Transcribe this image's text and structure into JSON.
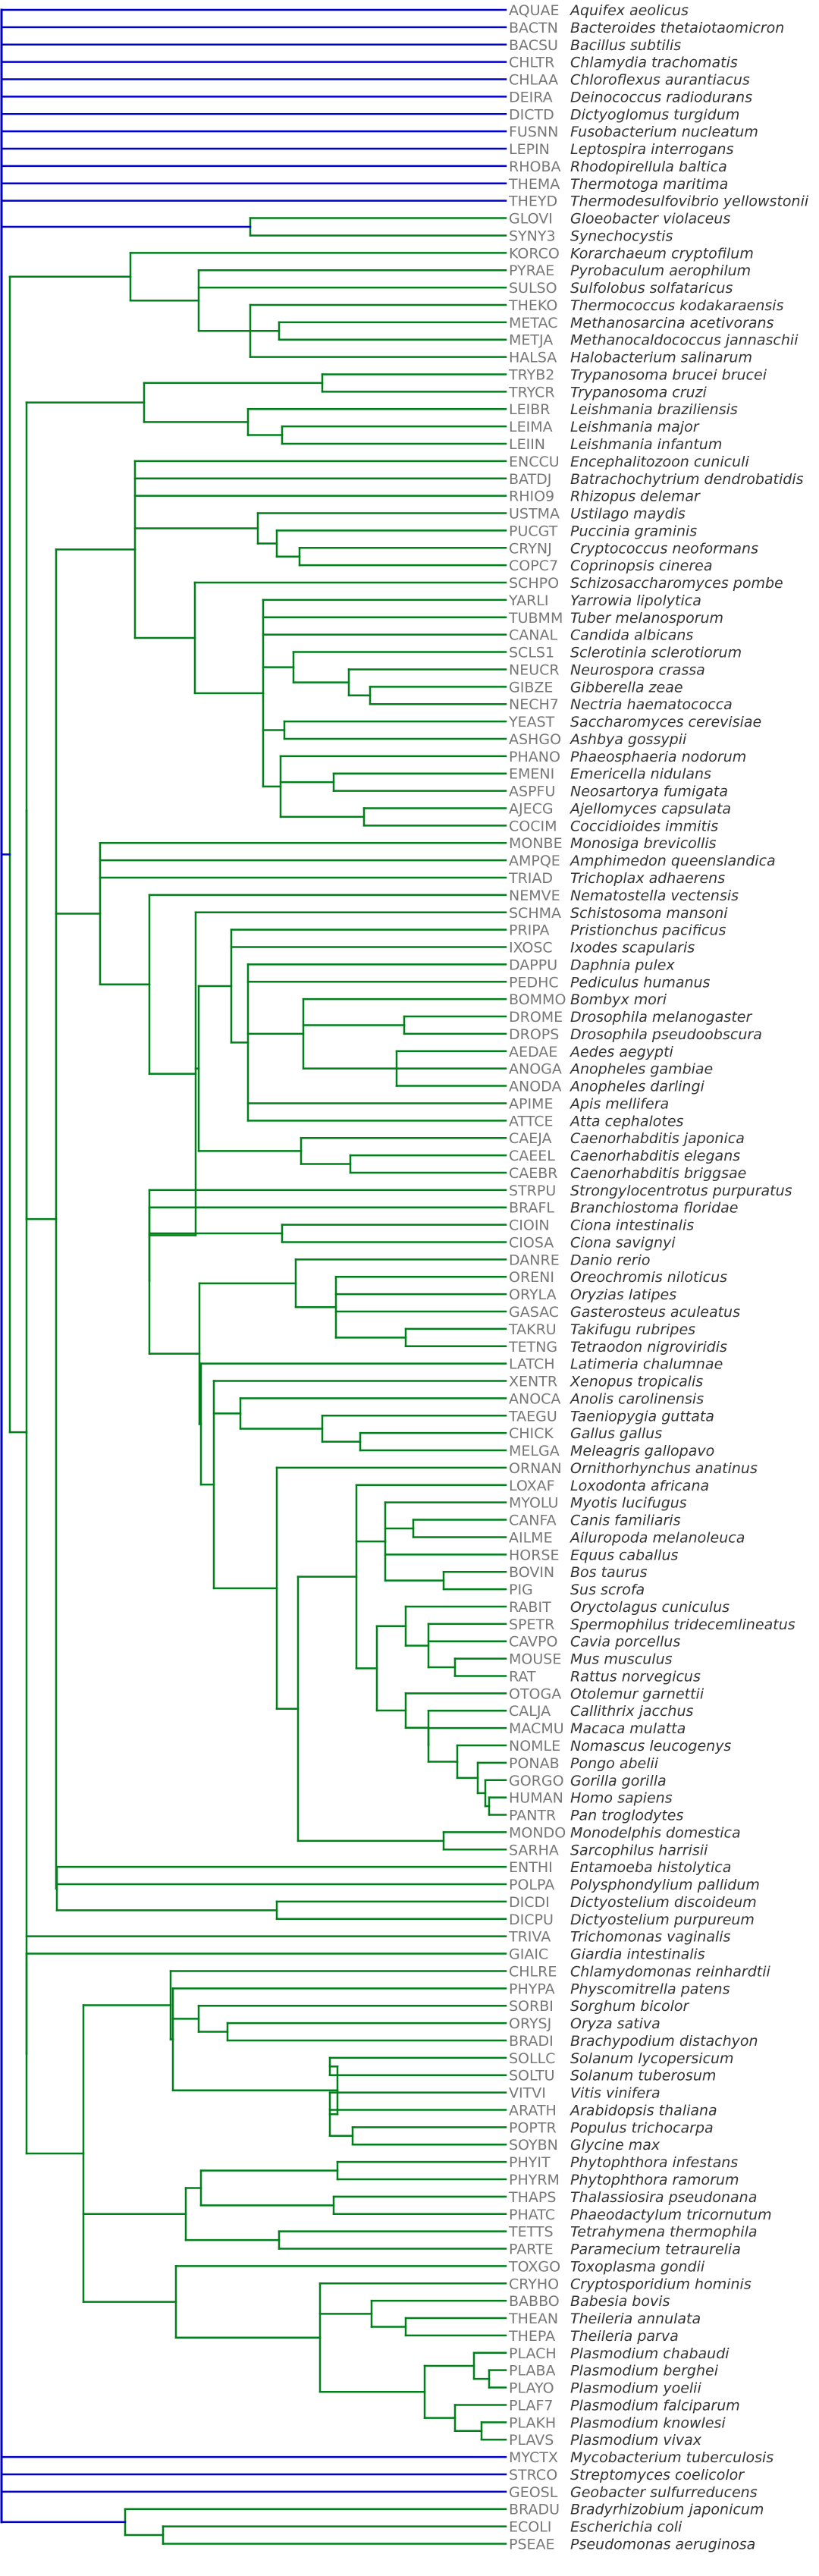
{
  "colors": {
    "root_branch": "#0000cc",
    "branch": "#00801b",
    "code_text": "#777777",
    "species_text": "#333333"
  },
  "leaves": [
    {
      "code": "AQUAE",
      "name": "Aquifex aeolicus"
    },
    {
      "code": "BACTN",
      "name": "Bacteroides thetaiotaomicron"
    },
    {
      "code": "BACSU",
      "name": "Bacillus subtilis"
    },
    {
      "code": "CHLTR",
      "name": "Chlamydia trachomatis"
    },
    {
      "code": "CHLAA",
      "name": "Chloroflexus aurantiacus"
    },
    {
      "code": "DEIRA",
      "name": "Deinococcus radiodurans"
    },
    {
      "code": "DICTD",
      "name": "Dictyoglomus turgidum"
    },
    {
      "code": "FUSNN",
      "name": "Fusobacterium nucleatum"
    },
    {
      "code": "LEPIN",
      "name": "Leptospira interrogans"
    },
    {
      "code": "RHOBA",
      "name": "Rhodopirellula baltica"
    },
    {
      "code": "THEMA",
      "name": "Thermotoga maritima"
    },
    {
      "code": "THEYD",
      "name": "Thermodesulfovibrio yellowstonii"
    },
    {
      "code": "GLOVI",
      "name": "Gloeobacter violaceus"
    },
    {
      "code": "SYNY3",
      "name": "Synechocystis"
    },
    {
      "code": "KORCO",
      "name": "Korarchaeum cryptofilum"
    },
    {
      "code": "PYRAE",
      "name": "Pyrobaculum aerophilum"
    },
    {
      "code": "SULSO",
      "name": "Sulfolobus solfataricus"
    },
    {
      "code": "THEKO",
      "name": "Thermococcus kodakaraensis"
    },
    {
      "code": "METAC",
      "name": "Methanosarcina acetivorans"
    },
    {
      "code": "METJA",
      "name": "Methanocaldococcus jannaschii"
    },
    {
      "code": "HALSA",
      "name": "Halobacterium salinarum"
    },
    {
      "code": "TRYB2",
      "name": "Trypanosoma brucei brucei"
    },
    {
      "code": "TRYCR",
      "name": "Trypanosoma cruzi"
    },
    {
      "code": "LEIBR",
      "name": "Leishmania braziliensis"
    },
    {
      "code": "LEIMA",
      "name": "Leishmania major"
    },
    {
      "code": "LEIIN",
      "name": "Leishmania infantum"
    },
    {
      "code": "ENCCU",
      "name": "Encephalitozoon cuniculi"
    },
    {
      "code": "BATDJ",
      "name": "Batrachochytrium dendrobatidis"
    },
    {
      "code": "RHIO9",
      "name": "Rhizopus delemar"
    },
    {
      "code": "USTMA",
      "name": "Ustilago maydis"
    },
    {
      "code": "PUCGT",
      "name": "Puccinia graminis"
    },
    {
      "code": "CRYNJ",
      "name": "Cryptococcus neoformans"
    },
    {
      "code": "COPC7",
      "name": "Coprinopsis cinerea"
    },
    {
      "code": "SCHPO",
      "name": "Schizosaccharomyces pombe"
    },
    {
      "code": "YARLI",
      "name": "Yarrowia lipolytica"
    },
    {
      "code": "TUBMM",
      "name": "Tuber melanosporum"
    },
    {
      "code": "CANAL",
      "name": "Candida albicans"
    },
    {
      "code": "SCLS1",
      "name": "Sclerotinia sclerotiorum"
    },
    {
      "code": "NEUCR",
      "name": "Neurospora crassa"
    },
    {
      "code": "GIBZE",
      "name": "Gibberella zeae"
    },
    {
      "code": "NECH7",
      "name": "Nectria haematococca"
    },
    {
      "code": "YEAST",
      "name": "Saccharomyces cerevisiae"
    },
    {
      "code": "ASHGO",
      "name": "Ashbya gossypii"
    },
    {
      "code": "PHANO",
      "name": "Phaeosphaeria nodorum"
    },
    {
      "code": "EMENI",
      "name": "Emericella nidulans"
    },
    {
      "code": "ASPFU",
      "name": "Neosartorya fumigata"
    },
    {
      "code": "AJECG",
      "name": "Ajellomyces capsulata"
    },
    {
      "code": "COCIM",
      "name": "Coccidioides immitis"
    },
    {
      "code": "MONBE",
      "name": "Monosiga brevicollis"
    },
    {
      "code": "AMPQE",
      "name": "Amphimedon queenslandica"
    },
    {
      "code": "TRIAD",
      "name": "Trichoplax adhaerens"
    },
    {
      "code": "NEMVE",
      "name": "Nematostella vectensis"
    },
    {
      "code": "SCHMA",
      "name": "Schistosoma mansoni"
    },
    {
      "code": "PRIPA",
      "name": "Pristionchus pacificus"
    },
    {
      "code": "IXOSC",
      "name": "Ixodes scapularis"
    },
    {
      "code": "DAPPU",
      "name": "Daphnia pulex"
    },
    {
      "code": "PEDHC",
      "name": "Pediculus humanus"
    },
    {
      "code": "BOMMO",
      "name": "Bombyx mori"
    },
    {
      "code": "DROME",
      "name": "Drosophila melanogaster"
    },
    {
      "code": "DROPS",
      "name": "Drosophila pseudoobscura"
    },
    {
      "code": "AEDAE",
      "name": "Aedes aegypti"
    },
    {
      "code": "ANOGA",
      "name": "Anopheles gambiae"
    },
    {
      "code": "ANODA",
      "name": "Anopheles darlingi"
    },
    {
      "code": "APIME",
      "name": "Apis mellifera"
    },
    {
      "code": "ATTCE",
      "name": "Atta cephalotes"
    },
    {
      "code": "CAEJA",
      "name": "Caenorhabditis japonica"
    },
    {
      "code": "CAEEL",
      "name": "Caenorhabditis elegans"
    },
    {
      "code": "CAEBR",
      "name": "Caenorhabditis briggsae"
    },
    {
      "code": "STRPU",
      "name": "Strongylocentrotus purpuratus"
    },
    {
      "code": "BRAFL",
      "name": "Branchiostoma floridae"
    },
    {
      "code": "CIOIN",
      "name": "Ciona intestinalis"
    },
    {
      "code": "CIOSA",
      "name": "Ciona savignyi"
    },
    {
      "code": "DANRE",
      "name": "Danio rerio"
    },
    {
      "code": "ORENI",
      "name": "Oreochromis niloticus"
    },
    {
      "code": "ORYLA",
      "name": "Oryzias latipes"
    },
    {
      "code": "GASAC",
      "name": "Gasterosteus aculeatus"
    },
    {
      "code": "TAKRU",
      "name": "Takifugu rubripes"
    },
    {
      "code": "TETNG",
      "name": "Tetraodon nigroviridis"
    },
    {
      "code": "LATCH",
      "name": "Latimeria chalumnae"
    },
    {
      "code": "XENTR",
      "name": "Xenopus tropicalis"
    },
    {
      "code": "ANOCA",
      "name": "Anolis carolinensis"
    },
    {
      "code": "TAEGU",
      "name": "Taeniopygia guttata"
    },
    {
      "code": "CHICK",
      "name": "Gallus gallus"
    },
    {
      "code": "MELGA",
      "name": "Meleagris gallopavo"
    },
    {
      "code": "ORNAN",
      "name": "Ornithorhynchus anatinus"
    },
    {
      "code": "LOXAF",
      "name": "Loxodonta africana"
    },
    {
      "code": "MYOLU",
      "name": "Myotis lucifugus"
    },
    {
      "code": "CANFA",
      "name": "Canis familiaris"
    },
    {
      "code": "AILME",
      "name": "Ailuropoda melanoleuca"
    },
    {
      "code": "HORSE",
      "name": "Equus caballus"
    },
    {
      "code": "BOVIN",
      "name": "Bos taurus"
    },
    {
      "code": "PIG",
      "name": "Sus scrofa"
    },
    {
      "code": "RABIT",
      "name": "Oryctolagus cuniculus"
    },
    {
      "code": "SPETR",
      "name": "Spermophilus tridecemlineatus"
    },
    {
      "code": "CAVPO",
      "name": "Cavia porcellus"
    },
    {
      "code": "MOUSE",
      "name": "Mus musculus"
    },
    {
      "code": "RAT",
      "name": "Rattus norvegicus"
    },
    {
      "code": "OTOGA",
      "name": "Otolemur garnettii"
    },
    {
      "code": "CALJA",
      "name": "Callithrix jacchus"
    },
    {
      "code": "MACMU",
      "name": "Macaca mulatta"
    },
    {
      "code": "NOMLE",
      "name": "Nomascus leucogenys"
    },
    {
      "code": "PONAB",
      "name": "Pongo abelii"
    },
    {
      "code": "GORGO",
      "name": "Gorilla gorilla"
    },
    {
      "code": "HUMAN",
      "name": "Homo sapiens"
    },
    {
      "code": "PANTR",
      "name": "Pan troglodytes"
    },
    {
      "code": "MONDO",
      "name": "Monodelphis domestica"
    },
    {
      "code": "SARHA",
      "name": "Sarcophilus harrisii"
    },
    {
      "code": "ENTHI",
      "name": "Entamoeba histolytica"
    },
    {
      "code": "POLPA",
      "name": "Polysphondylium pallidum"
    },
    {
      "code": "DICDI",
      "name": "Dictyostelium discoideum"
    },
    {
      "code": "DICPU",
      "name": "Dictyostelium purpureum"
    },
    {
      "code": "TRIVA",
      "name": "Trichomonas vaginalis"
    },
    {
      "code": "GIAIC",
      "name": "Giardia intestinalis"
    },
    {
      "code": "CHLRE",
      "name": "Chlamydomonas reinhardtii"
    },
    {
      "code": "PHYPA",
      "name": "Physcomitrella patens"
    },
    {
      "code": "SORBI",
      "name": "Sorghum bicolor"
    },
    {
      "code": "ORYSJ",
      "name": "Oryza sativa"
    },
    {
      "code": "BRADI",
      "name": "Brachypodium distachyon"
    },
    {
      "code": "SOLLC",
      "name": "Solanum lycopersicum"
    },
    {
      "code": "SOLTU",
      "name": "Solanum tuberosum"
    },
    {
      "code": "VITVI",
      "name": "Vitis vinifera"
    },
    {
      "code": "ARATH",
      "name": "Arabidopsis thaliana"
    },
    {
      "code": "POPTR",
      "name": "Populus trichocarpa"
    },
    {
      "code": "SOYBN",
      "name": "Glycine max"
    },
    {
      "code": "PHYIT",
      "name": "Phytophthora infestans"
    },
    {
      "code": "PHYRM",
      "name": "Phytophthora ramorum"
    },
    {
      "code": "THAPS",
      "name": "Thalassiosira pseudonana"
    },
    {
      "code": "PHATC",
      "name": "Phaeodactylum tricornutum"
    },
    {
      "code": "TETTS",
      "name": "Tetrahymena thermophila"
    },
    {
      "code": "PARTE",
      "name": "Paramecium tetraurelia"
    },
    {
      "code": "TOXGO",
      "name": "Toxoplasma gondii"
    },
    {
      "code": "CRYHO",
      "name": "Cryptosporidium hominis"
    },
    {
      "code": "BABBO",
      "name": "Babesia bovis"
    },
    {
      "code": "THEAN",
      "name": "Theileria annulata"
    },
    {
      "code": "THEPA",
      "name": "Theileria parva"
    },
    {
      "code": "PLACH",
      "name": "Plasmodium chabaudi"
    },
    {
      "code": "PLABA",
      "name": "Plasmodium berghei"
    },
    {
      "code": "PLAYO",
      "name": "Plasmodium yoelii"
    },
    {
      "code": "PLAF7",
      "name": "Plasmodium falciparum"
    },
    {
      "code": "PLAKH",
      "name": "Plasmodium knowlesi"
    },
    {
      "code": "PLAVS",
      "name": "Plasmodium vivax"
    },
    {
      "code": "MYCTX",
      "name": "Mycobacterium tuberculosis"
    },
    {
      "code": "STRCO",
      "name": "Streptomyces coelicolor"
    },
    {
      "code": "GEOSL",
      "name": "Geobacter sulfurreducens"
    },
    {
      "code": "BRADU",
      "name": "Bradyrhizobium japonicum"
    },
    {
      "code": "ECOLI",
      "name": "Escherichia coli"
    },
    {
      "code": "PSEAE",
      "name": "Pseudomonas aeruginosa"
    }
  ]
}
